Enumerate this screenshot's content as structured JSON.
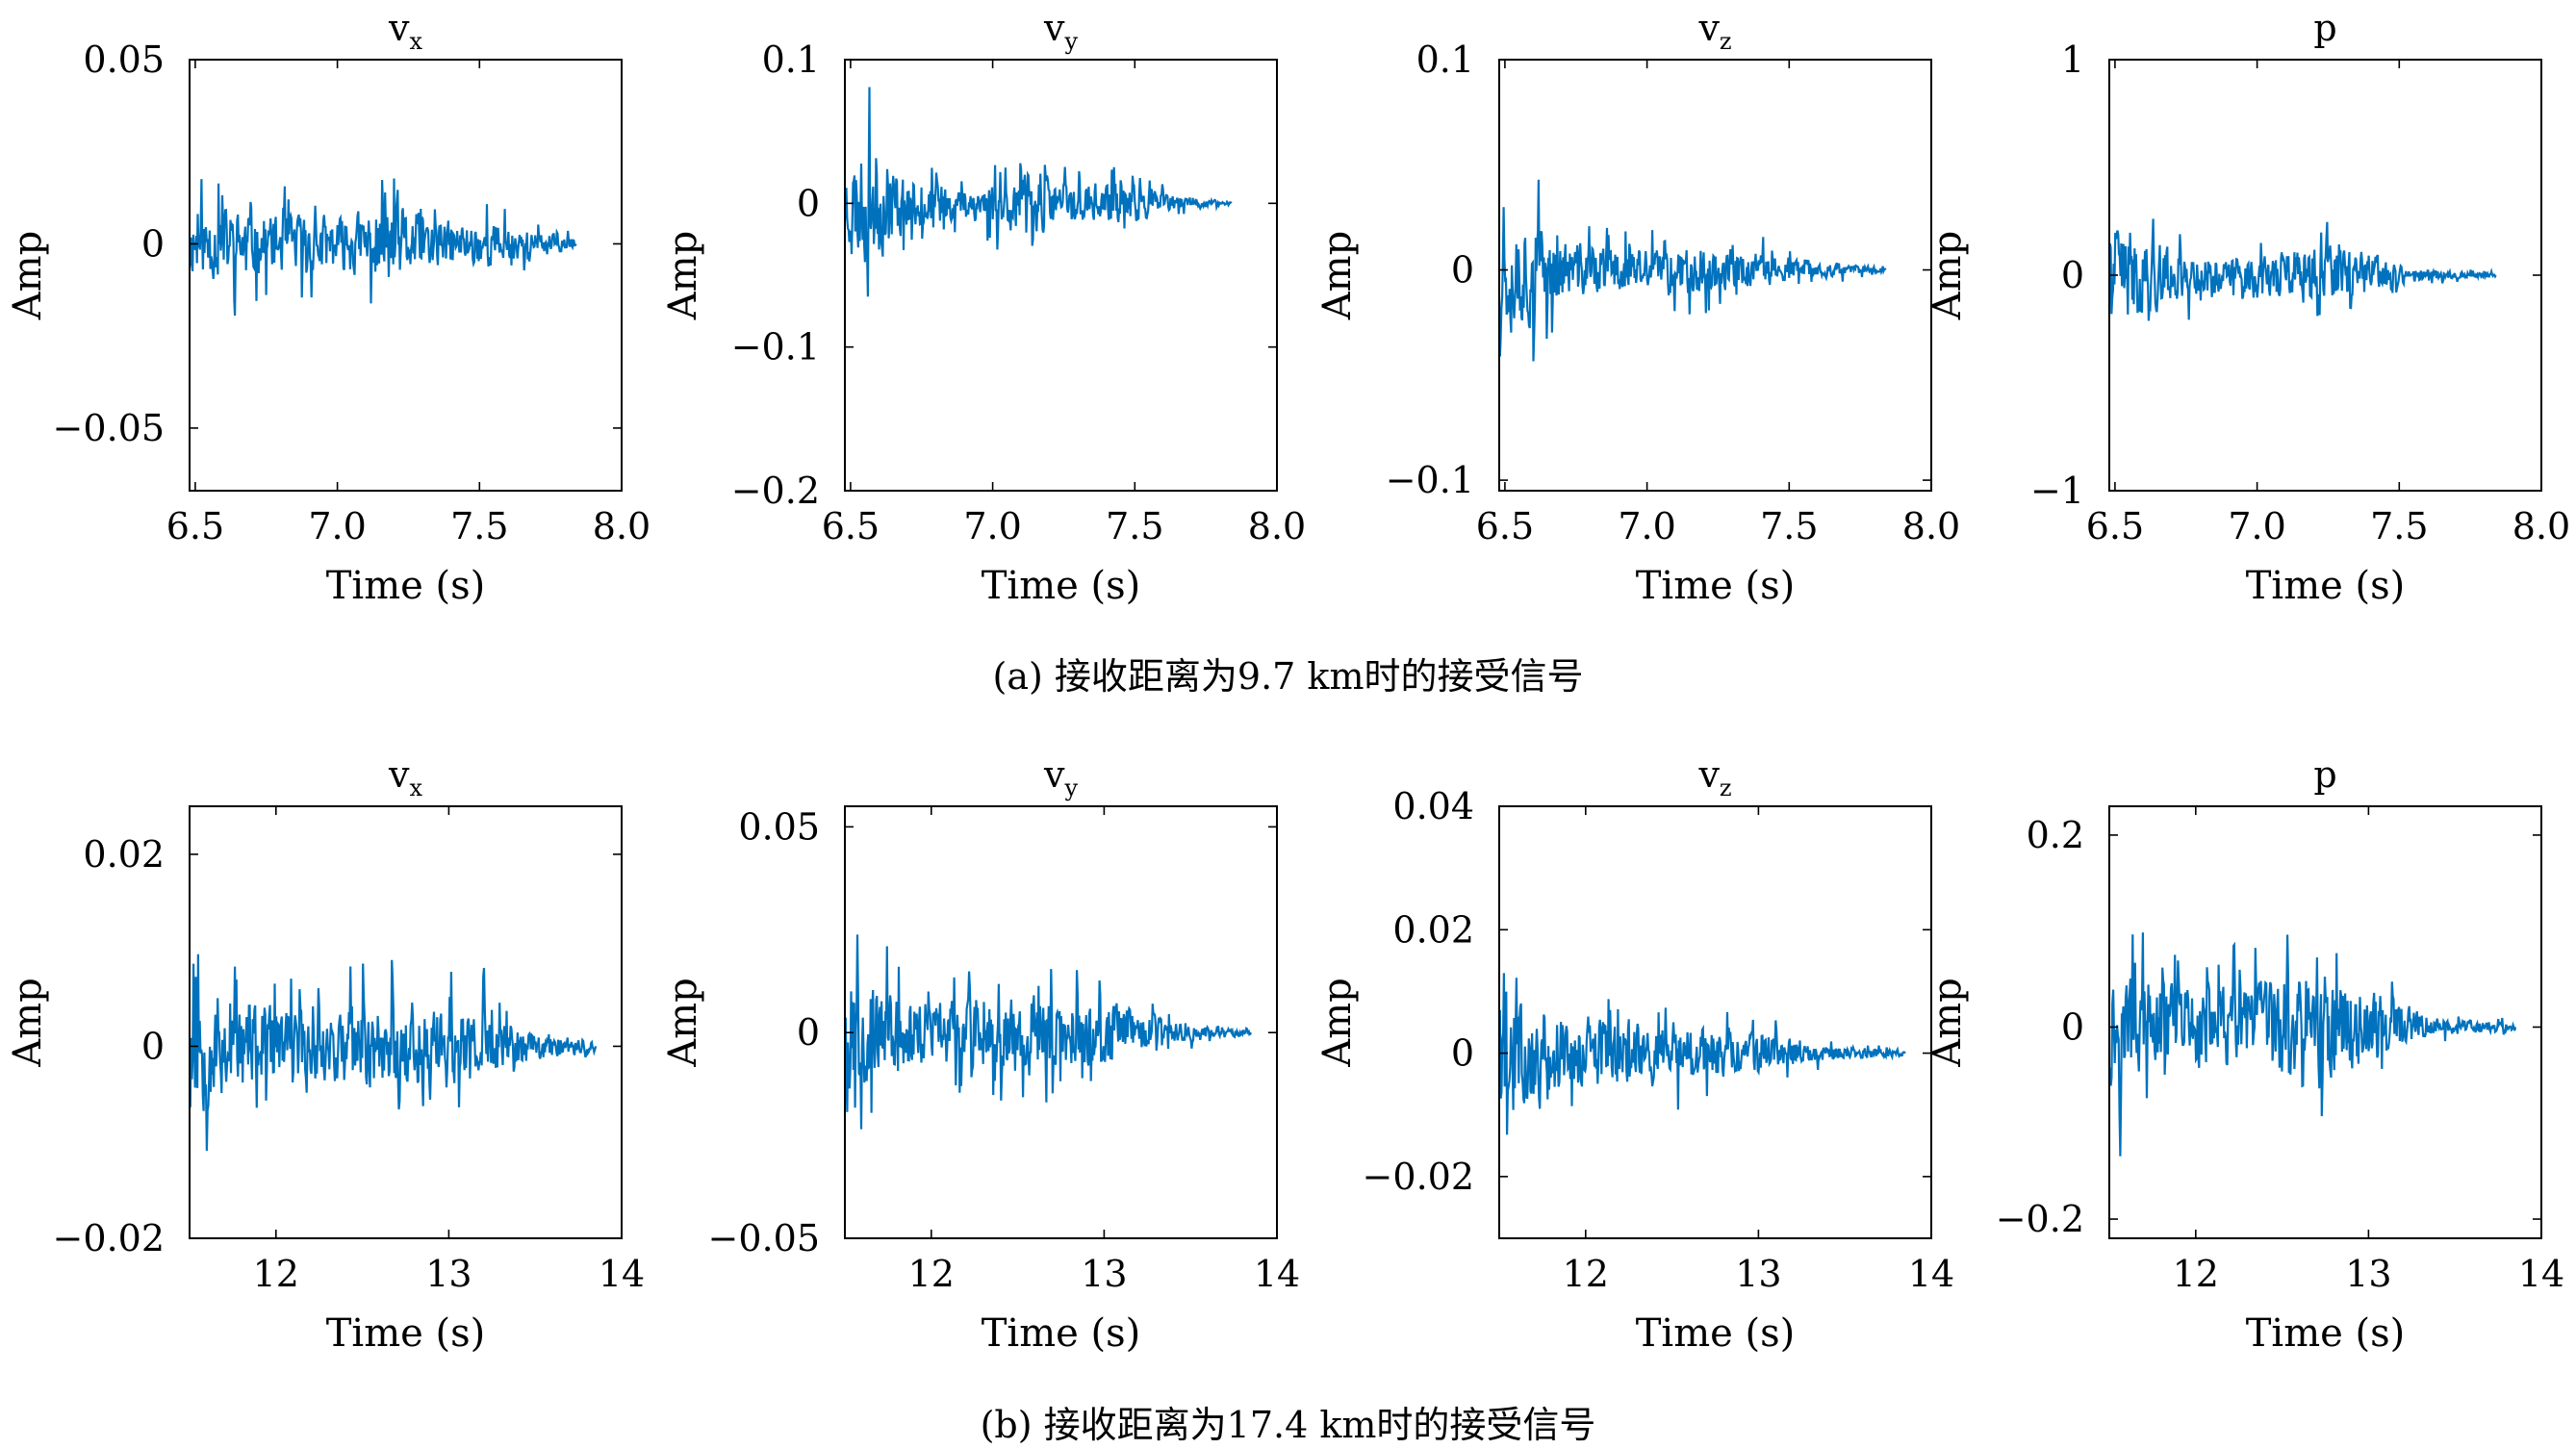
{
  "captions": {
    "a": "(a) 接收距离为9.7 km时的接受信号",
    "b": "(b) 接收距离为17.4 km时的接受信号"
  },
  "style": {
    "line_color": "#0072BD",
    "axis_color": "#000000",
    "background": "#ffffff"
  },
  "chart_data": [
    {
      "id": "a-vx",
      "type": "line",
      "title": "v",
      "title_sub": "x",
      "xlabel": "Time (s)",
      "ylabel": "Amp",
      "xlim": [
        6.48,
        8.0
      ],
      "ylim": [
        -0.067,
        0.05
      ],
      "xticks": [
        6.5,
        7.0,
        7.5,
        8.0
      ],
      "xtick_labels": [
        "6.5",
        "7.0",
        "7.5",
        "8.0"
      ],
      "yticks": [
        0.05,
        0,
        -0.05
      ],
      "ytick_labels": [
        "0.05",
        "0",
        "−0.05"
      ],
      "series": [
        {
          "x_start": 6.48,
          "x_end": 7.84,
          "envelope": [
            0.03,
            0.035,
            0.03,
            0.027,
            0.03,
            0.025,
            0.033,
            0.04,
            0.025,
            0.02,
            0.023,
            0.015,
            0.01,
            0.005
          ],
          "seed": 11
        }
      ]
    },
    {
      "id": "a-vy",
      "type": "line",
      "title": "v",
      "title_sub": "y",
      "xlabel": "Time (s)",
      "ylabel": "Amp",
      "xlim": [
        6.48,
        8.0
      ],
      "ylim": [
        -0.2,
        0.1
      ],
      "xticks": [
        6.5,
        7.0,
        7.5,
        8.0
      ],
      "xtick_labels": [
        "6.5",
        "7.0",
        "7.5",
        "8.0"
      ],
      "yticks": [
        0.1,
        0,
        -0.1,
        -0.2
      ],
      "ytick_labels": [
        "0.1",
        "0",
        "−0.1",
        "−0.2"
      ],
      "series": [
        {
          "x_start": 6.48,
          "x_end": 7.84,
          "envelope": [
            0.1,
            0.15,
            0.07,
            0.05,
            0.04,
            0.06,
            0.07,
            0.065,
            0.05,
            0.05,
            0.04,
            0.02,
            0.01,
            0.005
          ],
          "seed": 23
        }
      ]
    },
    {
      "id": "a-vz",
      "type": "line",
      "title": "v",
      "title_sub": "z",
      "xlabel": "Time (s)",
      "ylabel": "Amp",
      "xlim": [
        6.48,
        8.0
      ],
      "ylim": [
        -0.105,
        0.1
      ],
      "xticks": [
        6.5,
        7.0,
        7.5,
        8.0
      ],
      "xtick_labels": [
        "6.5",
        "7.0",
        "7.5",
        "8.0"
      ],
      "yticks": [
        0.1,
        0,
        -0.1
      ],
      "ytick_labels": [
        "0.1",
        "0",
        "−0.1"
      ],
      "series": [
        {
          "x_start": 6.48,
          "x_end": 7.84,
          "envelope": [
            0.1,
            0.1,
            0.05,
            0.045,
            0.04,
            0.035,
            0.04,
            0.04,
            0.035,
            0.025,
            0.02,
            0.012,
            0.008,
            0.004
          ],
          "seed": 37
        }
      ]
    },
    {
      "id": "a-p",
      "type": "line",
      "title": "p",
      "title_sub": "",
      "xlabel": "Time (s)",
      "ylabel": "Amp",
      "xlim": [
        6.48,
        8.0
      ],
      "ylim": [
        -1,
        1
      ],
      "xticks": [
        6.5,
        7.0,
        7.5,
        8.0
      ],
      "xtick_labels": [
        "6.5",
        "7.0",
        "7.5",
        "8.0"
      ],
      "yticks": [
        1,
        0,
        -1
      ],
      "ytick_labels": [
        "1",
        "0",
        "−1"
      ],
      "series": [
        {
          "x_start": 6.48,
          "x_end": 7.84,
          "envelope": [
            0.9,
            0.7,
            0.45,
            0.35,
            0.3,
            0.3,
            0.45,
            0.45,
            0.45,
            0.3,
            0.12,
            0.08,
            0.05,
            0.03
          ],
          "seed": 41
        }
      ]
    },
    {
      "id": "b-vx",
      "type": "line",
      "title": "v",
      "title_sub": "x",
      "xlabel": "Time (s)",
      "ylabel": "Amp",
      "xlim": [
        11.5,
        14.0
      ],
      "ylim": [
        -0.02,
        0.025
      ],
      "xticks": [
        12,
        13,
        14
      ],
      "xtick_labels": [
        "12",
        "13",
        "14"
      ],
      "yticks": [
        0.02,
        0,
        -0.02
      ],
      "ytick_labels": [
        "0.02",
        "0",
        "−0.02"
      ],
      "series": [
        {
          "x_start": 11.5,
          "x_end": 13.85,
          "envelope": [
            0.024,
            0.02,
            0.015,
            0.013,
            0.012,
            0.016,
            0.018,
            0.015,
            0.014,
            0.012,
            0.006,
            0.004,
            0.003
          ],
          "seed": 53
        }
      ]
    },
    {
      "id": "b-vy",
      "type": "line",
      "title": "v",
      "title_sub": "y",
      "xlabel": "Time (s)",
      "ylabel": "Amp",
      "xlim": [
        11.5,
        14.0
      ],
      "ylim": [
        -0.05,
        0.055
      ],
      "xticks": [
        12,
        13,
        14
      ],
      "xtick_labels": [
        "12",
        "13",
        "14"
      ],
      "yticks": [
        0.05,
        0,
        -0.05
      ],
      "ytick_labels": [
        "0.05",
        "0",
        "−0.05"
      ],
      "series": [
        {
          "x_start": 11.5,
          "x_end": 13.85,
          "envelope": [
            0.055,
            0.04,
            0.03,
            0.028,
            0.03,
            0.035,
            0.032,
            0.03,
            0.025,
            0.015,
            0.007,
            0.004,
            0.003
          ],
          "seed": 67
        }
      ]
    },
    {
      "id": "b-vz",
      "type": "line",
      "title": "v",
      "title_sub": "z",
      "xlabel": "Time (s)",
      "ylabel": "Amp",
      "xlim": [
        11.5,
        14.0
      ],
      "ylim": [
        -0.03,
        0.04
      ],
      "xticks": [
        12,
        13,
        14
      ],
      "xtick_labels": [
        "12",
        "13",
        "14"
      ],
      "yticks": [
        0.04,
        0.02,
        0,
        -0.02
      ],
      "ytick_labels": [
        "0.04",
        "0.02",
        "0",
        "−0.02"
      ],
      "series": [
        {
          "x_start": 11.5,
          "x_end": 13.85,
          "envelope": [
            0.04,
            0.03,
            0.02,
            0.02,
            0.018,
            0.02,
            0.018,
            0.014,
            0.01,
            0.006,
            0.004,
            0.003,
            0.002
          ],
          "seed": 79
        }
      ]
    },
    {
      "id": "b-p",
      "type": "line",
      "title": "p",
      "title_sub": "",
      "xlabel": "Time (s)",
      "ylabel": "Amp",
      "xlim": [
        11.5,
        14.0
      ],
      "ylim": [
        -0.22,
        0.23
      ],
      "xticks": [
        12,
        13,
        14
      ],
      "xtick_labels": [
        "12",
        "13",
        "14"
      ],
      "yticks": [
        0.2,
        0,
        -0.2
      ],
      "ytick_labels": [
        "0.2",
        "0",
        "−0.2"
      ],
      "series": [
        {
          "x_start": 11.5,
          "x_end": 13.85,
          "envelope": [
            0.22,
            0.18,
            0.15,
            0.14,
            0.15,
            0.18,
            0.22,
            0.16,
            0.14,
            0.06,
            0.03,
            0.02,
            0.015
          ],
          "seed": 97
        }
      ]
    }
  ]
}
